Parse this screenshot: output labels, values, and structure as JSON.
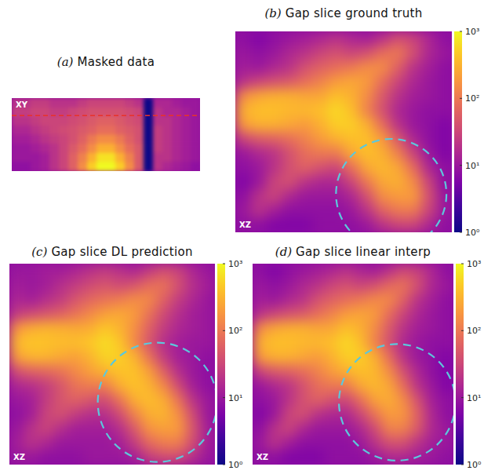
{
  "chart_data": [
    {
      "type": "heatmap",
      "panel": "(a)",
      "title": "Masked data",
      "annotation": "XY",
      "log": true,
      "tick_labels": false,
      "color_range": [
        1,
        1000
      ],
      "cells": [
        [
          20,
          20,
          25,
          25,
          20,
          20,
          20,
          25,
          30,
          30,
          30,
          30,
          25,
          20,
          1,
          15,
          15,
          12,
          10,
          10
        ],
        [
          25,
          25,
          30,
          30,
          25,
          25,
          30,
          35,
          40,
          40,
          40,
          40,
          35,
          30,
          1,
          20,
          15,
          15,
          12,
          10
        ],
        [
          20,
          20,
          25,
          30,
          30,
          30,
          35,
          40,
          50,
          60,
          60,
          50,
          40,
          35,
          1,
          20,
          20,
          15,
          12,
          10
        ],
        [
          15,
          15,
          20,
          25,
          30,
          35,
          40,
          50,
          60,
          80,
          80,
          60,
          50,
          40,
          1,
          25,
          20,
          15,
          12,
          10
        ],
        [
          12,
          12,
          15,
          20,
          25,
          30,
          40,
          60,
          100,
          150,
          150,
          100,
          60,
          40,
          1,
          25,
          20,
          15,
          12,
          10
        ],
        [
          10,
          10,
          12,
          15,
          20,
          30,
          50,
          80,
          150,
          300,
          300,
          150,
          80,
          50,
          1,
          25,
          20,
          15,
          12,
          10
        ],
        [
          10,
          10,
          10,
          12,
          20,
          30,
          60,
          120,
          300,
          700,
          700,
          300,
          120,
          50,
          1,
          20,
          20,
          15,
          12,
          10
        ],
        [
          8,
          8,
          10,
          12,
          20,
          30,
          60,
          150,
          500,
          1000,
          1000,
          500,
          150,
          50,
          1,
          20,
          15,
          12,
          10,
          8
        ]
      ]
    },
    {
      "type": "heatmap",
      "panel": "(b)",
      "title": "Gap slice  ground  truth",
      "annotation": "XZ",
      "log": true,
      "tick_labels": false,
      "color_range": [
        1,
        1000
      ],
      "color_ticks": [
        {
          "value": 1,
          "label": "10⁰"
        },
        {
          "value": 10,
          "label": "10¹"
        },
        {
          "value": 100,
          "label": "10²"
        },
        {
          "value": 1000,
          "label": "10³"
        }
      ],
      "cells": [
        [
          8,
          6,
          8,
          10,
          12,
          15,
          20,
          15,
          12,
          20,
          40,
          30,
          15,
          8
        ],
        [
          10,
          8,
          10,
          15,
          20,
          30,
          40,
          30,
          40,
          80,
          100,
          40,
          15,
          10
        ],
        [
          12,
          10,
          15,
          20,
          40,
          60,
          80,
          100,
          150,
          150,
          60,
          20,
          12,
          8
        ],
        [
          20,
          30,
          40,
          50,
          80,
          120,
          200,
          250,
          200,
          80,
          30,
          15,
          10,
          8
        ],
        [
          150,
          250,
          300,
          300,
          250,
          250,
          400,
          300,
          150,
          50,
          20,
          12,
          10,
          8
        ],
        [
          300,
          400,
          400,
          350,
          350,
          400,
          600,
          400,
          120,
          40,
          15,
          10,
          8,
          8
        ],
        [
          200,
          300,
          300,
          250,
          200,
          300,
          500,
          500,
          300,
          80,
          20,
          10,
          8,
          6
        ],
        [
          30,
          50,
          60,
          80,
          120,
          200,
          300,
          400,
          400,
          200,
          50,
          15,
          8,
          6
        ],
        [
          10,
          15,
          20,
          40,
          80,
          100,
          100,
          250,
          400,
          300,
          120,
          30,
          10,
          6
        ],
        [
          8,
          10,
          20,
          40,
          60,
          40,
          30,
          80,
          250,
          350,
          250,
          80,
          15,
          8
        ],
        [
          6,
          10,
          30,
          40,
          20,
          15,
          15,
          30,
          100,
          250,
          300,
          150,
          30,
          8
        ],
        [
          8,
          20,
          30,
          15,
          10,
          10,
          10,
          15,
          40,
          150,
          200,
          200,
          40,
          10
        ],
        [
          10,
          20,
          12,
          8,
          8,
          8,
          8,
          10,
          20,
          60,
          100,
          100,
          30,
          10
        ],
        [
          8,
          8,
          6,
          6,
          6,
          8,
          8,
          8,
          10,
          20,
          30,
          30,
          15,
          8
        ]
      ]
    },
    {
      "type": "heatmap",
      "panel": "(c)",
      "title": "Gap slice DL prediction",
      "annotation": "XZ",
      "log": true,
      "tick_labels": false,
      "color_range": [
        1,
        1000
      ],
      "color_ticks": [
        {
          "value": 1,
          "label": "10⁰"
        },
        {
          "value": 10,
          "label": "10¹"
        },
        {
          "value": 100,
          "label": "10²"
        },
        {
          "value": 1000,
          "label": "10³"
        }
      ],
      "cells": [
        [
          10,
          10,
          12,
          12,
          15,
          20,
          25,
          20,
          15,
          25,
          40,
          30,
          15,
          10
        ],
        [
          12,
          10,
          12,
          18,
          25,
          35,
          45,
          35,
          45,
          80,
          90,
          40,
          18,
          12
        ],
        [
          15,
          12,
          18,
          25,
          45,
          70,
          90,
          110,
          150,
          140,
          60,
          25,
          15,
          10
        ],
        [
          25,
          35,
          45,
          60,
          90,
          140,
          220,
          260,
          200,
          90,
          35,
          18,
          12,
          10
        ],
        [
          180,
          280,
          320,
          300,
          260,
          280,
          450,
          320,
          160,
          60,
          25,
          15,
          12,
          10
        ],
        [
          350,
          450,
          420,
          380,
          380,
          450,
          650,
          450,
          140,
          45,
          18,
          12,
          10,
          10
        ],
        [
          220,
          320,
          320,
          260,
          220,
          320,
          550,
          520,
          320,
          90,
          25,
          12,
          10,
          8
        ],
        [
          40,
          60,
          70,
          90,
          140,
          220,
          320,
          420,
          420,
          220,
          60,
          18,
          10,
          8
        ],
        [
          15,
          18,
          25,
          45,
          90,
          110,
          110,
          280,
          420,
          320,
          140,
          35,
          12,
          8
        ],
        [
          10,
          12,
          25,
          45,
          60,
          45,
          35,
          90,
          280,
          380,
          280,
          90,
          20,
          10
        ],
        [
          8,
          12,
          30,
          40,
          25,
          18,
          18,
          35,
          120,
          280,
          320,
          160,
          35,
          10
        ],
        [
          10,
          20,
          30,
          18,
          12,
          12,
          12,
          18,
          50,
          170,
          220,
          200,
          45,
          12
        ],
        [
          12,
          20,
          15,
          10,
          10,
          10,
          10,
          12,
          25,
          70,
          110,
          110,
          35,
          12
        ],
        [
          10,
          10,
          8,
          8,
          8,
          10,
          10,
          10,
          12,
          25,
          35,
          35,
          18,
          10
        ]
      ]
    },
    {
      "type": "heatmap",
      "panel": "(d)",
      "title": "Gap slice linear interp",
      "annotation": "XZ",
      "log": true,
      "tick_labels": false,
      "color_range": [
        1,
        1000
      ],
      "color_ticks": [
        {
          "value": 1,
          "label": "10⁰"
        },
        {
          "value": 10,
          "label": "10¹"
        },
        {
          "value": 100,
          "label": "10²"
        },
        {
          "value": 1000,
          "label": "10³"
        }
      ],
      "cells": [
        [
          8,
          6,
          8,
          10,
          12,
          15,
          20,
          15,
          12,
          20,
          35,
          28,
          15,
          8
        ],
        [
          10,
          8,
          10,
          15,
          20,
          30,
          40,
          30,
          40,
          70,
          90,
          40,
          15,
          10
        ],
        [
          12,
          10,
          15,
          20,
          40,
          60,
          80,
          100,
          140,
          140,
          60,
          20,
          12,
          8
        ],
        [
          20,
          30,
          40,
          50,
          80,
          120,
          200,
          240,
          200,
          80,
          30,
          15,
          10,
          8
        ],
        [
          150,
          250,
          300,
          300,
          250,
          250,
          400,
          300,
          150,
          50,
          20,
          12,
          10,
          8
        ],
        [
          300,
          400,
          400,
          350,
          350,
          400,
          600,
          400,
          120,
          40,
          15,
          10,
          8,
          8
        ],
        [
          200,
          300,
          300,
          250,
          200,
          300,
          500,
          500,
          300,
          80,
          20,
          10,
          8,
          6
        ],
        [
          30,
          50,
          60,
          80,
          120,
          200,
          300,
          400,
          350,
          150,
          40,
          15,
          8,
          6
        ],
        [
          10,
          15,
          20,
          40,
          80,
          100,
          100,
          250,
          350,
          250,
          80,
          20,
          10,
          6
        ],
        [
          8,
          10,
          20,
          40,
          60,
          40,
          30,
          80,
          220,
          280,
          150,
          40,
          12,
          8
        ],
        [
          6,
          10,
          30,
          40,
          20,
          15,
          15,
          30,
          90,
          200,
          180,
          60,
          15,
          8
        ],
        [
          8,
          20,
          30,
          15,
          10,
          10,
          10,
          15,
          35,
          120,
          120,
          50,
          15,
          10
        ],
        [
          10,
          20,
          12,
          8,
          8,
          8,
          8,
          10,
          20,
          40,
          40,
          20,
          12,
          10
        ],
        [
          8,
          8,
          6,
          6,
          6,
          8,
          8,
          8,
          10,
          15,
          15,
          12,
          10,
          8
        ]
      ]
    }
  ]
}
